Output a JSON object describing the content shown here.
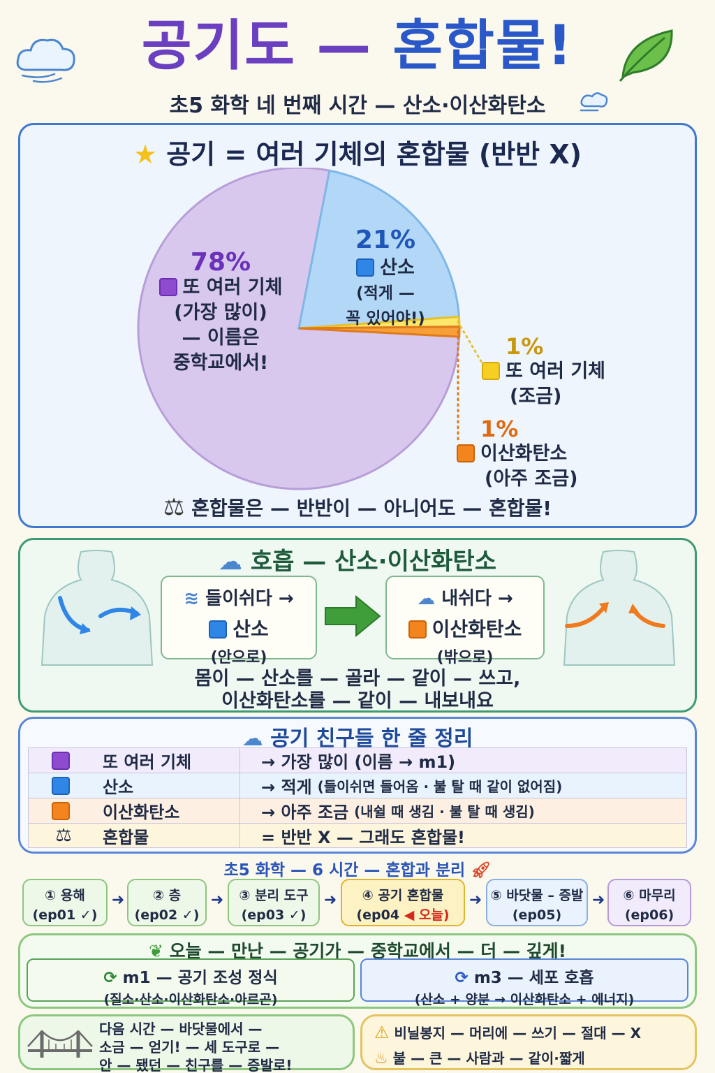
{
  "header": {
    "title_part1": "공기도 —",
    "title_part2": "혼합물!",
    "subtitle": "초5 화학 네 번째 시간 — 산소·이산화탄소"
  },
  "pie_panel": {
    "title": "공기 = 여러 기체의 혼합물 (반반 X)",
    "footer": "혼합물은 — 반반이 — 아니어도 — 혼합물!"
  },
  "chart_data": {
    "type": "pie",
    "title": "공기 = 여러 기체의 혼합물 (반반 X)",
    "slices": [
      {
        "label": "또 여러 기체",
        "value": 78,
        "pct_label": "78%",
        "note": [
          "(가장 많이)",
          "— 이름은",
          "중학교에서!"
        ],
        "color": "#d9c8ee"
      },
      {
        "label": "산소",
        "value": 21,
        "pct_label": "21%",
        "note": [
          "(적게 —",
          "꼭 있어야!)"
        ],
        "color": "#b3d8f7"
      },
      {
        "label": "또 여러 기체",
        "value": 1,
        "pct_label": "1%",
        "note": [
          "(조금)"
        ],
        "color": "#fbe76b"
      },
      {
        "label": "이산화탄소",
        "value": 1,
        "pct_label": "1%",
        "note": [
          "(아주 조금)"
        ],
        "color": "#f7a03a"
      }
    ]
  },
  "breath": {
    "title": "호흡 — 산소·이산화탄소",
    "inhale": {
      "verb": "들이쉬다 →",
      "gas": "산소",
      "dir": "(안으로)"
    },
    "exhale": {
      "verb": "내쉬다 →",
      "gas": "이산화탄소",
      "dir": "(밖으로)"
    },
    "text_line1": "몸이 — 산소를 — 골라 — 같이 — 쓰고,",
    "text_line2": "이산화탄소를 — 같이 — 내보내요"
  },
  "summary": {
    "title": "공기 친구들 한 줄 정리",
    "rows": [
      {
        "name": "또 여러 기체",
        "desc": "→ 가장 많이 (이름 → m1)",
        "small": ""
      },
      {
        "name": "산소",
        "desc": "→ 적게",
        "small": "(들이쉬면 들어옴 · 불 탈 때 같이 없어짐)"
      },
      {
        "name": "이산화탄소",
        "desc": "→ 아주 조금",
        "small": "(내쉴 때 생김 · 불 탈 때 생김)"
      },
      {
        "name": "혼합물",
        "desc": "= 반반 X — 그래도 혼합물!",
        "small": ""
      }
    ]
  },
  "timeline": {
    "title": "초5 화학 — 6 시간 — 혼합과 분리",
    "steps": [
      {
        "line1": "① 용해",
        "line2": "(ep01 ✓)"
      },
      {
        "line1": "② 층",
        "line2": "(ep02 ✓)"
      },
      {
        "line1": "③ 분리 도구",
        "line2": "(ep03 ✓)"
      },
      {
        "line1": "④ 공기 혼합물",
        "line2": "(ep04",
        "today": "◀ 오늘)"
      },
      {
        "line1": "⑤ 바닷물 – 증발",
        "line2": "(ep05)"
      },
      {
        "line1": "⑥ 마무리",
        "line2": "(ep06)"
      }
    ]
  },
  "today": {
    "title": "오늘 — 만난 — 공기가 — 중학교에서 — 더 — 깊게!",
    "m1_title": "m1 — 공기 조성 정식",
    "m1_sub": "(질소·산소·이산화탄소·아르곤)",
    "m3_title": "m3 — 세포 호흡",
    "m3_sub": "(산소 + 양분 → 이산화탄소 + 에너지)"
  },
  "next": {
    "line1": "다음 시간 — 바닷물에서 —",
    "line2": "소금 — 얻기! — 세 도구로 —",
    "line3": "안 — 됐던 — 친구를 — 증발로!"
  },
  "warning": {
    "line1": "비닐봉지 — 머리에 — 쓰기 — 절대 — X",
    "line2": "불 — 큰 — 사람과 — 같이·짧게"
  }
}
